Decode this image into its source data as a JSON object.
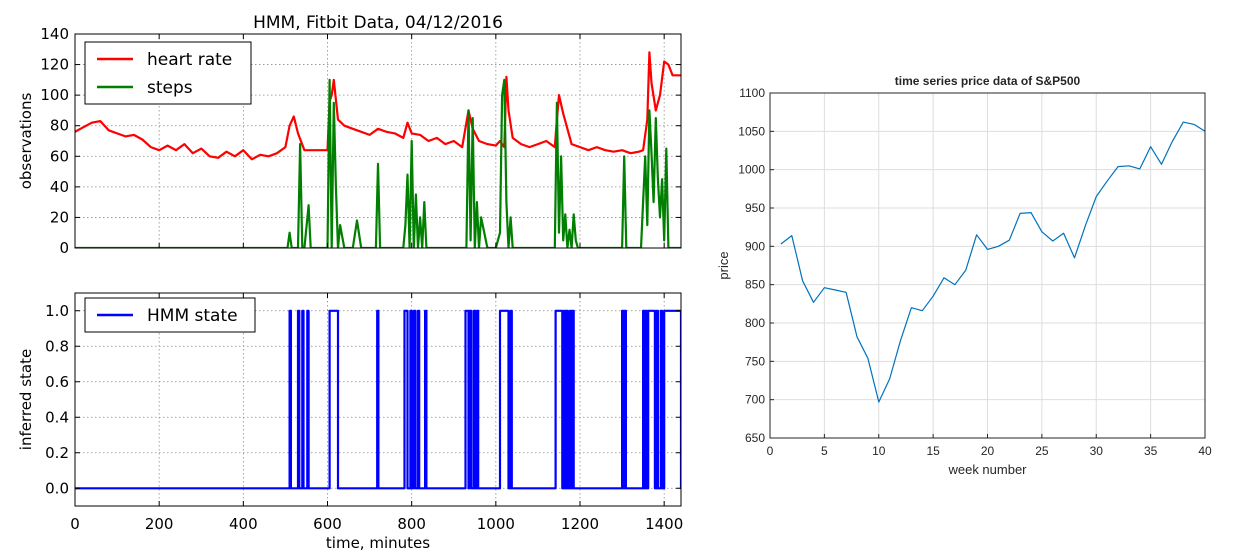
{
  "chart_data": [
    {
      "type": "line",
      "title": "HMM, Fitbit Data, 04/12/2016",
      "xlabel": "",
      "ylabel": "observations",
      "xlim": [
        0,
        1440
      ],
      "ylim": [
        0,
        140
      ],
      "xticks": [
        "0",
        "200",
        "400",
        "600",
        "800",
        "1000",
        "1200",
        "1400"
      ],
      "yticks": [
        "0",
        "20",
        "40",
        "60",
        "80",
        "100",
        "120",
        "140"
      ],
      "grid": true,
      "legend": "top-left",
      "series": [
        {
          "name": "heart rate",
          "color": "#ff0000",
          "x": [
            0,
            20,
            40,
            60,
            80,
            100,
            120,
            140,
            160,
            180,
            200,
            220,
            240,
            260,
            280,
            300,
            320,
            340,
            360,
            380,
            400,
            420,
            440,
            460,
            480,
            500,
            510,
            520,
            530,
            545,
            560,
            580,
            600,
            605,
            610,
            615,
            625,
            640,
            660,
            680,
            700,
            720,
            740,
            760,
            780,
            790,
            800,
            820,
            840,
            860,
            880,
            900,
            920,
            935,
            945,
            960,
            980,
            1000,
            1010,
            1020,
            1025,
            1030,
            1040,
            1060,
            1080,
            1100,
            1120,
            1140,
            1145,
            1150,
            1160,
            1180,
            1200,
            1220,
            1240,
            1260,
            1280,
            1300,
            1320,
            1340,
            1350,
            1360,
            1365,
            1370,
            1380,
            1390,
            1400,
            1410,
            1420,
            1440
          ],
          "values": [
            76,
            79,
            82,
            83,
            77,
            75,
            73,
            74,
            71,
            66,
            64,
            67,
            64,
            68,
            62,
            65,
            60,
            59,
            63,
            60,
            64,
            58,
            61,
            60,
            62,
            66,
            80,
            86,
            75,
            64,
            64,
            64,
            64,
            96,
            100,
            110,
            84,
            80,
            78,
            76,
            74,
            78,
            76,
            75,
            72,
            82,
            75,
            74,
            70,
            72,
            68,
            70,
            66,
            90,
            78,
            70,
            68,
            67,
            70,
            66,
            112,
            90,
            72,
            68,
            66,
            68,
            70,
            66,
            84,
            100,
            88,
            68,
            66,
            64,
            66,
            64,
            63,
            64,
            62,
            63,
            64,
            84,
            128,
            108,
            90,
            100,
            122,
            120,
            113,
            113
          ]
        },
        {
          "name": "steps",
          "color": "#007f00",
          "x": [
            0,
            505,
            510,
            515,
            530,
            535,
            540,
            545,
            555,
            560,
            600,
            605,
            610,
            615,
            620,
            625,
            630,
            640,
            660,
            670,
            680,
            715,
            720,
            725,
            780,
            785,
            790,
            795,
            800,
            805,
            810,
            815,
            820,
            825,
            830,
            835,
            840,
            930,
            935,
            940,
            945,
            950,
            955,
            960,
            965,
            980,
            1000,
            1010,
            1015,
            1020,
            1025,
            1030,
            1035,
            1040,
            1100,
            1140,
            1145,
            1150,
            1155,
            1160,
            1165,
            1170,
            1175,
            1180,
            1185,
            1190,
            1195,
            1300,
            1305,
            1310,
            1345,
            1350,
            1355,
            1360,
            1365,
            1370,
            1375,
            1380,
            1385,
            1390,
            1395,
            1400,
            1405,
            1410,
            1440
          ],
          "values": [
            0,
            0,
            10,
            0,
            0,
            68,
            0,
            0,
            28,
            0,
            0,
            110,
            0,
            95,
            40,
            0,
            15,
            0,
            0,
            18,
            0,
            0,
            55,
            0,
            0,
            15,
            48,
            0,
            70,
            0,
            35,
            0,
            20,
            0,
            30,
            0,
            0,
            0,
            90,
            5,
            85,
            0,
            30,
            0,
            20,
            0,
            0,
            10,
            100,
            110,
            30,
            0,
            20,
            0,
            0,
            0,
            95,
            10,
            60,
            5,
            22,
            0,
            12,
            0,
            22,
            5,
            0,
            0,
            60,
            0,
            0,
            30,
            60,
            15,
            90,
            62,
            30,
            85,
            45,
            20,
            45,
            5,
            65,
            0,
            0
          ]
        }
      ]
    },
    {
      "type": "line",
      "title": "",
      "xlabel": "time, minutes",
      "ylabel": "inferred state",
      "xlim": [
        0,
        1440
      ],
      "ylim": [
        -0.1,
        1.1
      ],
      "xticks": [
        "0",
        "200",
        "400",
        "600",
        "800",
        "1000",
        "1200",
        "1400"
      ],
      "yticks": [
        "0.0",
        "0.2",
        "0.4",
        "0.6",
        "0.8",
        "1.0"
      ],
      "grid": true,
      "legend": "top-left",
      "series": [
        {
          "name": "HMM state",
          "color": "#0000ff",
          "intervals": [
            [
              510,
              513
            ],
            [
              530,
              533
            ],
            [
              540,
              543
            ],
            [
              552,
              555
            ],
            [
              605,
              625
            ],
            [
              718,
              721
            ],
            [
              783,
              790
            ],
            [
              797,
              800
            ],
            [
              805,
              809
            ],
            [
              815,
              818
            ],
            [
              832,
              835
            ],
            [
              928,
              935
            ],
            [
              938,
              942
            ],
            [
              948,
              951
            ],
            [
              955,
              958
            ],
            [
              1010,
              1030
            ],
            [
              1035,
              1038
            ],
            [
              1142,
              1158
            ],
            [
              1162,
              1165
            ],
            [
              1168,
              1171
            ],
            [
              1176,
              1179
            ],
            [
              1182,
              1185
            ],
            [
              1300,
              1303
            ],
            [
              1306,
              1309
            ],
            [
              1350,
              1353
            ],
            [
              1356,
              1359
            ],
            [
              1362,
              1378
            ],
            [
              1382,
              1385
            ],
            [
              1392,
              1395
            ],
            [
              1400,
              1440
            ]
          ]
        }
      ]
    },
    {
      "type": "line",
      "title": "time series price data of S&P500",
      "xlabel": "week number",
      "ylabel": "price",
      "xlim": [
        0,
        40
      ],
      "ylim": [
        650,
        1100
      ],
      "xticks": [
        "0",
        "5",
        "10",
        "15",
        "20",
        "25",
        "30",
        "35",
        "40"
      ],
      "yticks": [
        "650",
        "700",
        "750",
        "800",
        "850",
        "900",
        "950",
        "1000",
        "1050",
        "1100"
      ],
      "grid": true,
      "series": [
        {
          "color": "#0072bd",
          "x": [
            1,
            2,
            3,
            4,
            5,
            6,
            7,
            8,
            9,
            10,
            11,
            12,
            13,
            14,
            15,
            16,
            17,
            18,
            19,
            20,
            21,
            22,
            23,
            24,
            25,
            26,
            27,
            28,
            29,
            30,
            31,
            32,
            33,
            34,
            35,
            36,
            37,
            38,
            39,
            40
          ],
          "values": [
            903,
            914,
            855,
            827,
            846,
            843,
            840,
            782,
            754,
            697,
            727,
            777,
            820,
            816,
            835,
            859,
            850,
            869,
            915,
            896,
            900,
            908,
            943,
            944,
            919,
            907,
            917,
            885,
            927,
            965,
            985,
            1004,
            1005,
            1001,
            1030,
            1007,
            1037,
            1062,
            1059,
            1050
          ]
        }
      ]
    }
  ]
}
